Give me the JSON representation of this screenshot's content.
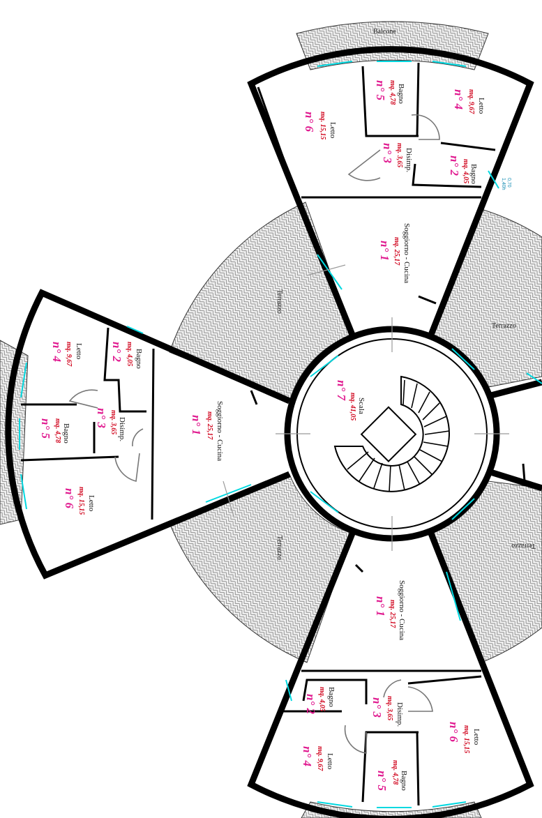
{
  "terraces": {
    "t_top_left": "Terrazzo",
    "t_right_top": "Terrazzo",
    "t_left_bottom": "Terrazzo",
    "t_right_bottom": "Terrazzo"
  },
  "balcony_label": "Balcone",
  "stair": {
    "name": "Scala",
    "area": "mq. 41,05",
    "num": "n° 7"
  },
  "units": {
    "top": {
      "n1": {
        "name": "Soggiorno - Cucina",
        "area": "mq. 25,17",
        "num": "n° 1"
      },
      "n2": {
        "name": "Bagno",
        "area": "mq. 4,05",
        "num": "n° 2"
      },
      "n3": {
        "name": "Disimp.",
        "area": "mq. 3,65",
        "num": "n° 3"
      },
      "n4": {
        "name": "Letto",
        "area": "mq. 9,67",
        "num": "n° 4"
      },
      "n5": {
        "name": "Bagno",
        "area": "mq. 4,78",
        "num": "n° 5"
      },
      "n6": {
        "name": "Letto",
        "area": "mq. 15,15",
        "num": "n° 6"
      }
    },
    "left": {
      "n1": {
        "name": "Soggiorno - Cucina",
        "area": "mq. 25,17",
        "num": "n° 1"
      },
      "n2": {
        "name": "Bagno",
        "area": "mq. 4,05",
        "num": "n° 2"
      },
      "n3": {
        "name": "Disimp.",
        "area": "mq. 3,65",
        "num": "n° 3"
      },
      "n4": {
        "name": "Letto",
        "area": "mq. 9,67",
        "num": "n° 4"
      },
      "n5": {
        "name": "Bagno",
        "area": "mq. 4,78",
        "num": "n° 5"
      },
      "n6": {
        "name": "Letto",
        "area": "mq. 15,15",
        "num": "n° 6"
      }
    },
    "bottom": {
      "n1": {
        "name": "Soggiorno - Cucina",
        "area": "mq. 25,17",
        "num": "n° 1"
      },
      "n2": {
        "name": "Bagno",
        "area": "mq. 4,05",
        "num": "n° 2"
      },
      "n3": {
        "name": "Disimp.",
        "area": "mq. 3,65",
        "num": "n° 3"
      },
      "n4": {
        "name": "Letto",
        "area": "mq. 9,67",
        "num": "n° 4"
      },
      "n5": {
        "name": "Bagno",
        "area": "mq. 4,78",
        "num": "n° 5"
      },
      "n6": {
        "name": "Letto",
        "area": "mq. 15,15",
        "num": "n° 6"
      }
    }
  },
  "windows": {
    "w1": "0,70",
    "w2": "1,40h",
    "w3": "0,70",
    "w4": "1,40h"
  }
}
